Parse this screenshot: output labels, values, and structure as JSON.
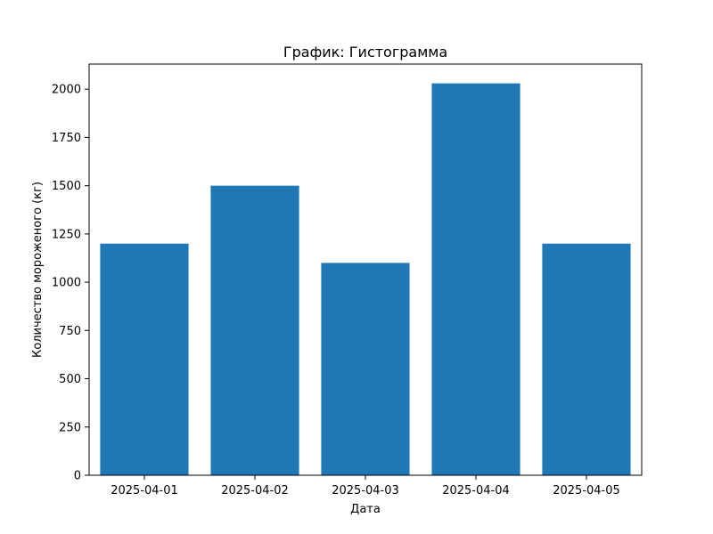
{
  "chart_data": {
    "type": "bar",
    "title": "График: Гистограмма",
    "xlabel": "Дата",
    "ylabel": "Количество мороженого (кг)",
    "categories": [
      "2025-04-01",
      "2025-04-02",
      "2025-04-03",
      "2025-04-04",
      "2025-04-05"
    ],
    "values": [
      1200,
      1500,
      1100,
      2030,
      1200
    ],
    "ylim": [
      0,
      2130
    ],
    "yticks": [
      0,
      250,
      500,
      750,
      1000,
      1250,
      1500,
      1750,
      2000
    ],
    "bar_color": "#1f77b4",
    "grid": false,
    "legend": "none"
  }
}
